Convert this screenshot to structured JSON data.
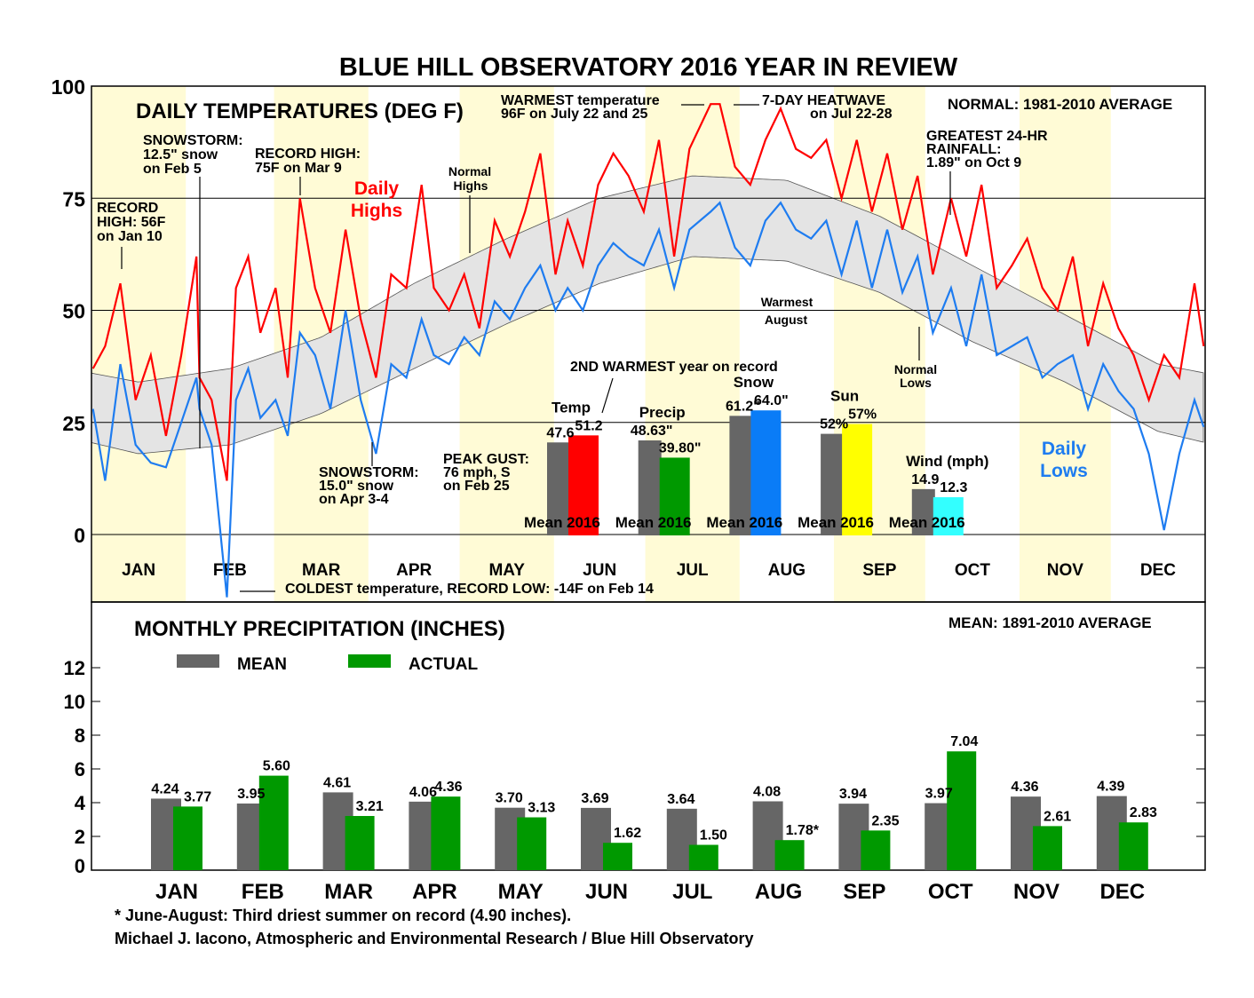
{
  "title": "BLUE HILL OBSERVATORY 2016 YEAR IN REVIEW",
  "colors": {
    "highs": "#ff0000",
    "lows": "#1e7cf0",
    "band": "#e4e4e4",
    "shade": "#fffbd6",
    "mean": "#666666",
    "actual": "#009900",
    "temp": "#ff0000",
    "snow": "#0a7cf7",
    "sun": "#ffff00",
    "wind": "#33ffff"
  },
  "chart_data": [
    {
      "type": "line",
      "title": "DAILY TEMPERATURES (DEG F)",
      "note": "NORMAL: 1981-2010 AVERAGE",
      "ylim": [
        -15,
        100
      ],
      "yticks": [
        "100",
        "75",
        "50",
        "25",
        "0"
      ],
      "months": [
        "JAN",
        "FEB",
        "MAR",
        "APR",
        "MAY",
        "JUN",
        "JUL",
        "AUG",
        "SEP",
        "OCT",
        "NOV",
        "DEC"
      ],
      "shaded_months": [
        "JAN",
        "MAR",
        "MAY",
        "JUL",
        "SEP",
        "NOV"
      ],
      "grid": true,
      "series_labels": {
        "highs": [
          "Daily",
          "Highs"
        ],
        "lows": [
          "Daily",
          "Lows"
        ],
        "normal_highs": [
          "Normal",
          "Highs"
        ],
        "normal_lows": [
          "Normal",
          "Lows"
        ],
        "warm_aug": [
          "Warmest",
          "August"
        ]
      },
      "normals": {
        "months": [
          "JAN",
          "FEB",
          "MAR",
          "APR",
          "MAY",
          "JUN",
          "JUL",
          "AUG",
          "SEP",
          "OCT",
          "NOV",
          "DEC"
        ],
        "high": [
          34,
          37,
          44,
          56,
          66,
          75,
          80,
          79,
          71,
          60,
          49,
          38
        ],
        "low": [
          18,
          20,
          27,
          37,
          47,
          56,
          62,
          61,
          54,
          43,
          34,
          23
        ]
      },
      "daily": {
        "dates": [
          "01-01",
          "01-05",
          "01-10",
          "01-15",
          "01-20",
          "01-25",
          "01-30",
          "02-04",
          "02-05",
          "02-09",
          "02-14",
          "02-17",
          "02-21",
          "02-25",
          "03-01",
          "03-05",
          "03-09",
          "03-14",
          "03-19",
          "03-24",
          "03-29",
          "04-03",
          "04-08",
          "04-13",
          "04-18",
          "04-22",
          "04-27",
          "05-02",
          "05-07",
          "05-12",
          "05-17",
          "05-22",
          "05-27",
          "06-01",
          "06-05",
          "06-10",
          "06-15",
          "06-20",
          "06-25",
          "06-30",
          "07-05",
          "07-10",
          "07-15",
          "07-22",
          "07-25",
          "07-30",
          "08-04",
          "08-09",
          "08-14",
          "08-19",
          "08-24",
          "08-29",
          "09-03",
          "09-08",
          "09-13",
          "09-18",
          "09-23",
          "09-28",
          "10-03",
          "10-09",
          "10-14",
          "10-19",
          "10-24",
          "10-29",
          "11-03",
          "11-08",
          "11-13",
          "11-18",
          "11-23",
          "11-28",
          "12-03",
          "12-08",
          "12-13",
          "12-18",
          "12-23",
          "12-28",
          "12-31"
        ],
        "highs": [
          37,
          42,
          56,
          30,
          40,
          22,
          40,
          62,
          35,
          30,
          12,
          55,
          62,
          45,
          55,
          35,
          75,
          55,
          45,
          68,
          48,
          35,
          58,
          55,
          78,
          55,
          50,
          58,
          46,
          70,
          62,
          72,
          85,
          58,
          70,
          60,
          78,
          85,
          80,
          72,
          88,
          62,
          86,
          96,
          96,
          82,
          78,
          88,
          95,
          86,
          84,
          88,
          75,
          88,
          72,
          85,
          68,
          80,
          58,
          75,
          62,
          78,
          55,
          60,
          66,
          55,
          50,
          62,
          42,
          56,
          46,
          40,
          30,
          40,
          35,
          56,
          42
        ],
        "lows": [
          28,
          12,
          38,
          20,
          16,
          15,
          25,
          35,
          28,
          20,
          -14,
          30,
          37,
          26,
          30,
          22,
          45,
          40,
          28,
          50,
          30,
          18,
          38,
          35,
          48,
          40,
          38,
          44,
          40,
          52,
          48,
          55,
          60,
          50,
          55,
          50,
          60,
          65,
          62,
          60,
          68,
          55,
          68,
          72,
          74,
          64,
          60,
          70,
          74,
          68,
          66,
          70,
          58,
          70,
          55,
          68,
          54,
          62,
          45,
          55,
          42,
          58,
          40,
          42,
          44,
          35,
          38,
          40,
          28,
          38,
          32,
          28,
          18,
          1,
          18,
          30,
          24
        ]
      },
      "annotations": {
        "jan_record": [
          "RECORD",
          "HIGH: 56F",
          "on Jan 10"
        ],
        "feb_snow": [
          "SNOWSTORM:",
          "12.5\" snow",
          "on Feb 5"
        ],
        "mar_record": [
          "RECORD HIGH:",
          "75F on Mar 9"
        ],
        "warmest": [
          "WARMEST temperature",
          "96F on July 22 and 25"
        ],
        "heatwave": [
          "7-DAY HEATWAVE",
          "on Jul 22-28"
        ],
        "rain": [
          "GREATEST 24-HR",
          "RAINFALL:",
          "1.89\" on Oct 9"
        ],
        "apr_snow": [
          "SNOWSTORM:",
          "15.0\" snow",
          "on Apr 3-4"
        ],
        "gust": [
          "PEAK GUST:",
          "76 mph, S",
          "on Feb 25"
        ],
        "coldest": "COLDEST temperature, RECORD LOW: -14F on Feb 14",
        "second_warmest": "2ND WARMEST year on record"
      }
    },
    {
      "type": "bar",
      "title": "inset",
      "groups": [
        {
          "label": "Temp",
          "mean": 47.6,
          "actual": 51.2,
          "mean_label": "47.6",
          "actual_label": "51.2"
        },
        {
          "label": "Precip",
          "mean": 48.63,
          "actual": 39.8,
          "mean_label": "48.63\"",
          "actual_label": "39.80\""
        },
        {
          "label": "Snow",
          "mean": 61.2,
          "actual": 64.0,
          "mean_label": "61.2\"",
          "actual_label": "64.0\""
        },
        {
          "label": "Sun",
          "mean": 52,
          "actual": 57,
          "mean_label": "52%",
          "actual_label": "57%"
        },
        {
          "label": "Wind (mph)",
          "mean": 14.9,
          "actual": 12.3,
          "mean_label": "14.9",
          "actual_label": "12.3"
        }
      ],
      "bar_labels": [
        "Mean",
        "2016"
      ]
    },
    {
      "type": "bar",
      "title": "MONTHLY PRECIPITATION (INCHES)",
      "note": "MEAN: 1891-2010 AVERAGE",
      "legend": [
        "MEAN",
        "ACTUAL"
      ],
      "legend_placement": "top-left",
      "ylim": [
        0,
        16
      ],
      "yticks": [
        "12",
        "10",
        "8",
        "6",
        "4",
        "2",
        "0"
      ],
      "categories": [
        "JAN",
        "FEB",
        "MAR",
        "APR",
        "MAY",
        "JUN",
        "JUL",
        "AUG",
        "SEP",
        "OCT",
        "NOV",
        "DEC"
      ],
      "series": [
        {
          "name": "MEAN",
          "values": [
            4.24,
            3.95,
            4.61,
            4.06,
            3.7,
            3.69,
            3.64,
            4.08,
            3.94,
            3.97,
            4.36,
            4.39
          ],
          "labels": [
            "4.24",
            "3.95",
            "4.61",
            "4.06",
            "3.70",
            "3.69",
            "3.64",
            "4.08",
            "3.94",
            "3.97",
            "4.36",
            "4.39"
          ]
        },
        {
          "name": "ACTUAL",
          "values": [
            3.77,
            5.6,
            3.21,
            4.36,
            3.13,
            1.62,
            1.5,
            1.78,
            2.35,
            7.04,
            2.61,
            2.83
          ],
          "labels": [
            "3.77",
            "5.60",
            "3.21",
            "4.36",
            "3.13",
            "1.62",
            "1.50",
            "1.78*",
            "2.35",
            "7.04",
            "2.61",
            "2.83"
          ]
        }
      ]
    }
  ],
  "footer": {
    "note": "* June-August: Third driest summer on record (4.90 inches).",
    "credit": "Michael J. Iacono, Atmospheric and Environmental Research / Blue Hill Observatory"
  }
}
